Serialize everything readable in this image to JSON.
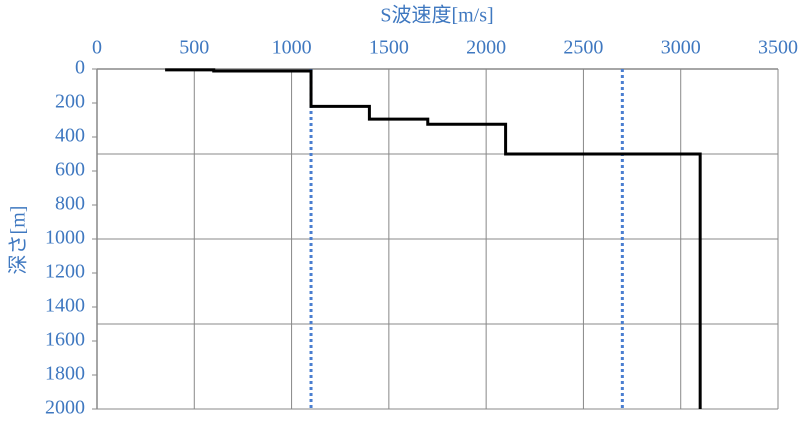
{
  "chart_data": {
    "type": "line",
    "x_label": "S波速度[m/s]",
    "y_label": "深さ[m]",
    "series": [
      {
        "color": "#000000",
        "x": [
          350,
          600,
          600,
          1100,
          1100,
          1400,
          1400,
          1700,
          1700,
          2100,
          2100,
          3100,
          3100
        ],
        "values": [
          5,
          5,
          12,
          12,
          220,
          220,
          295,
          295,
          325,
          325,
          500,
          500,
          2000
        ]
      }
    ],
    "reference_lines": {
      "color": "#4a7ed0",
      "style": "dotted",
      "x": [
        1100,
        2700
      ]
    },
    "xlim": [
      0,
      3500
    ],
    "xticks": [
      0,
      500,
      1000,
      1500,
      2000,
      2500,
      3000,
      3500
    ],
    "ylim": [
      0,
      2000
    ],
    "yticks": [
      0,
      200,
      400,
      600,
      800,
      1000,
      1200,
      1400,
      1600,
      1800,
      2000
    ],
    "y_inverted": true,
    "x_axis_position": "top",
    "y_gridlines": [
      500,
      1000,
      1500
    ],
    "x_grid": true
  }
}
